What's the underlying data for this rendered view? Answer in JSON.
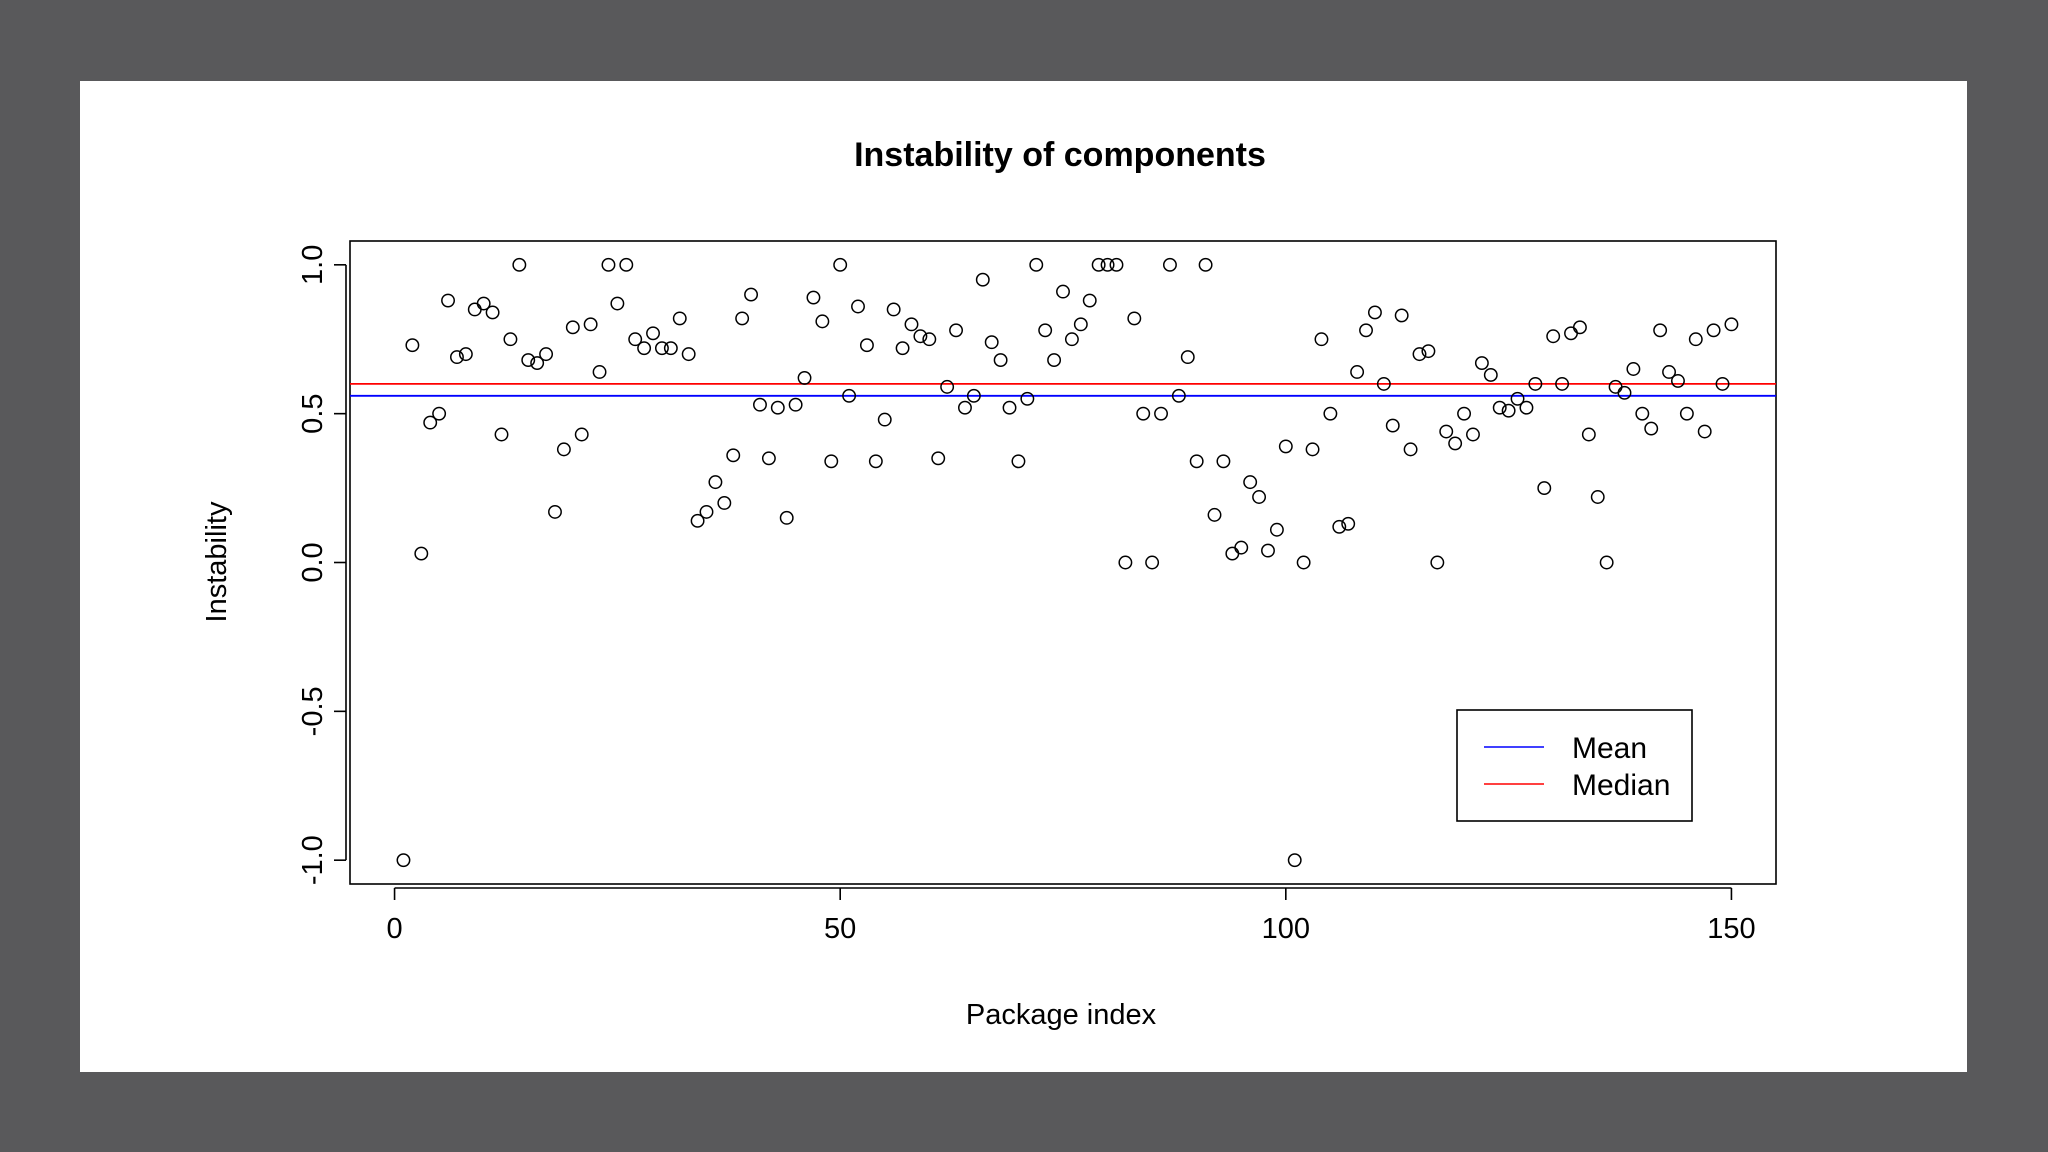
{
  "chart_data": {
    "type": "scatter",
    "title": "Instability of components",
    "xlabel": "Package index",
    "ylabel": "Instability",
    "xlim": [
      -5,
      155
    ],
    "ylim": [
      -1.08,
      1.08
    ],
    "xticks": [
      0,
      50,
      100,
      150
    ],
    "xtick_labels": [
      "0",
      "50",
      "100",
      "150"
    ],
    "yticks": [
      -1.0,
      -0.5,
      0.0,
      0.5,
      1.0
    ],
    "ytick_labels": [
      "-1.0",
      "-0.5",
      "0.0",
      "0.5",
      "1.0"
    ],
    "grid": false,
    "legend_position": "bottom-right",
    "series": [
      {
        "marker": "open-circle",
        "color": "#000000",
        "x": [
          1,
          2,
          3,
          4,
          5,
          6,
          7,
          8,
          9,
          10,
          11,
          12,
          13,
          14,
          15,
          16,
          17,
          18,
          19,
          20,
          21,
          22,
          23,
          24,
          25,
          26,
          27,
          28,
          29,
          30,
          31,
          32,
          33,
          34,
          35,
          36,
          37,
          38,
          39,
          40,
          41,
          42,
          43,
          44,
          45,
          46,
          47,
          48,
          49,
          50,
          51,
          52,
          53,
          54,
          55,
          56,
          57,
          58,
          59,
          60,
          61,
          62,
          63,
          64,
          65,
          66,
          67,
          68,
          69,
          70,
          71,
          72,
          73,
          74,
          75,
          76,
          77,
          78,
          79,
          80,
          81,
          82,
          83,
          84,
          85,
          86,
          87,
          88,
          89,
          90,
          91,
          92,
          93,
          94,
          95,
          96,
          97,
          98,
          99,
          100,
          101,
          102,
          103,
          104,
          105,
          106,
          107,
          108,
          109,
          110,
          111,
          112,
          113,
          114,
          115,
          116,
          117,
          118,
          119,
          120,
          121,
          122,
          123,
          124,
          125,
          126,
          127,
          128,
          129,
          130,
          131,
          132,
          133,
          134,
          135,
          136,
          137,
          138,
          139,
          140,
          141,
          142,
          143,
          144,
          145,
          146,
          147,
          148,
          149,
          150
        ],
        "y": [
          -1.0,
          0.73,
          0.03,
          0.47,
          0.5,
          0.88,
          0.69,
          0.7,
          0.85,
          0.87,
          0.84,
          0.43,
          0.75,
          1.0,
          0.68,
          0.67,
          0.7,
          0.17,
          0.38,
          0.79,
          0.43,
          0.8,
          0.64,
          1.0,
          0.87,
          1.0,
          0.75,
          0.72,
          0.77,
          0.72,
          0.72,
          0.82,
          0.7,
          0.14,
          0.17,
          0.27,
          0.2,
          0.36,
          0.82,
          0.9,
          0.53,
          0.35,
          0.52,
          0.15,
          0.53,
          0.62,
          0.89,
          0.81,
          0.34,
          1.0,
          0.56,
          0.86,
          0.73,
          0.34,
          0.48,
          0.85,
          0.72,
          0.8,
          0.76,
          0.75,
          0.35,
          0.59,
          0.78,
          0.52,
          0.56,
          0.95,
          0.74,
          0.68,
          0.52,
          0.34,
          0.55,
          1.0,
          0.78,
          0.68,
          0.91,
          0.75,
          0.8,
          0.88,
          1.0,
          1.0,
          1.0,
          0.0,
          0.82,
          0.5,
          0.0,
          0.5,
          1.0,
          0.56,
          0.69,
          0.34,
          1.0,
          0.16,
          0.34,
          0.03,
          0.05,
          0.27,
          0.22,
          0.04,
          0.11,
          0.39,
          -1.0,
          0.0,
          0.38,
          0.75,
          0.5,
          0.12,
          0.13,
          0.64,
          0.78,
          0.84,
          0.6,
          0.46,
          0.83,
          0.38,
          0.7,
          0.71,
          0.0,
          0.44,
          0.4,
          0.5,
          0.43,
          0.67,
          0.63,
          0.52,
          0.51,
          0.55,
          0.52,
          0.6,
          0.25,
          0.76,
          0.6,
          0.77,
          0.79,
          0.43,
          0.22,
          0.0,
          0.59,
          0.57,
          0.65,
          0.5,
          0.45,
          0.78,
          0.64,
          0.61,
          0.5,
          0.75,
          0.44,
          0.78,
          0.6,
          0.8
        ]
      },
      {
        "name": "Mean",
        "type": "hline",
        "y": 0.56,
        "color": "#0000ff"
      },
      {
        "name": "Median",
        "type": "hline",
        "y": 0.6,
        "color": "#ff0000"
      }
    ]
  }
}
